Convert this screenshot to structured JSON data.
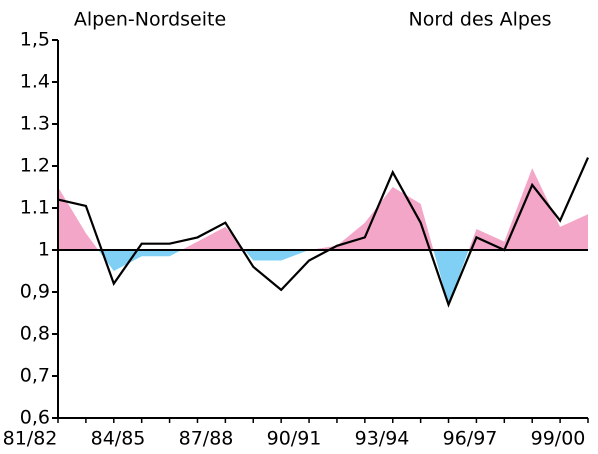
{
  "chart_data": {
    "type": "line",
    "title": "Alpen-Nordseite",
    "subtitle": "Nord des Alpes",
    "categories": [
      "81/82",
      null,
      null,
      "84/85",
      null,
      null,
      "87/88",
      null,
      null,
      "90/91",
      null,
      null,
      "93/94",
      null,
      null,
      "96/97",
      null,
      null,
      "99/00",
      null
    ],
    "series": [
      {
        "kind": "area",
        "color": "#f4a6c8",
        "color_below": "#7fd0f4",
        "values": [
          1.15,
          1.04,
          0.95,
          0.985,
          0.985,
          1.02,
          1.055,
          0.975,
          0.975,
          1.0,
          1.01,
          1.065,
          1.15,
          1.11,
          0.87,
          1.05,
          1.02,
          1.195,
          1.055,
          1.085
        ]
      },
      {
        "kind": "line",
        "color": "#000000",
        "values": [
          1.12,
          1.105,
          0.92,
          1.015,
          1.015,
          1.03,
          1.065,
          0.96,
          0.905,
          0.975,
          1.01,
          1.03,
          1.185,
          1.065,
          0.87,
          1.03,
          1.0,
          1.155,
          1.07,
          1.22
        ]
      }
    ],
    "baseline": 1,
    "ylim": [
      0.6,
      1.5
    ],
    "yticks": [
      {
        "value": 0.6,
        "label": "0,6"
      },
      {
        "value": 0.7,
        "label": "0,7"
      },
      {
        "value": 0.8,
        "label": "0,8"
      },
      {
        "value": 0.9,
        "label": "0,9"
      },
      1,
      1.1,
      1.2,
      1.3,
      1.4,
      {
        "value": 1.5,
        "label": "1,5"
      }
    ]
  }
}
